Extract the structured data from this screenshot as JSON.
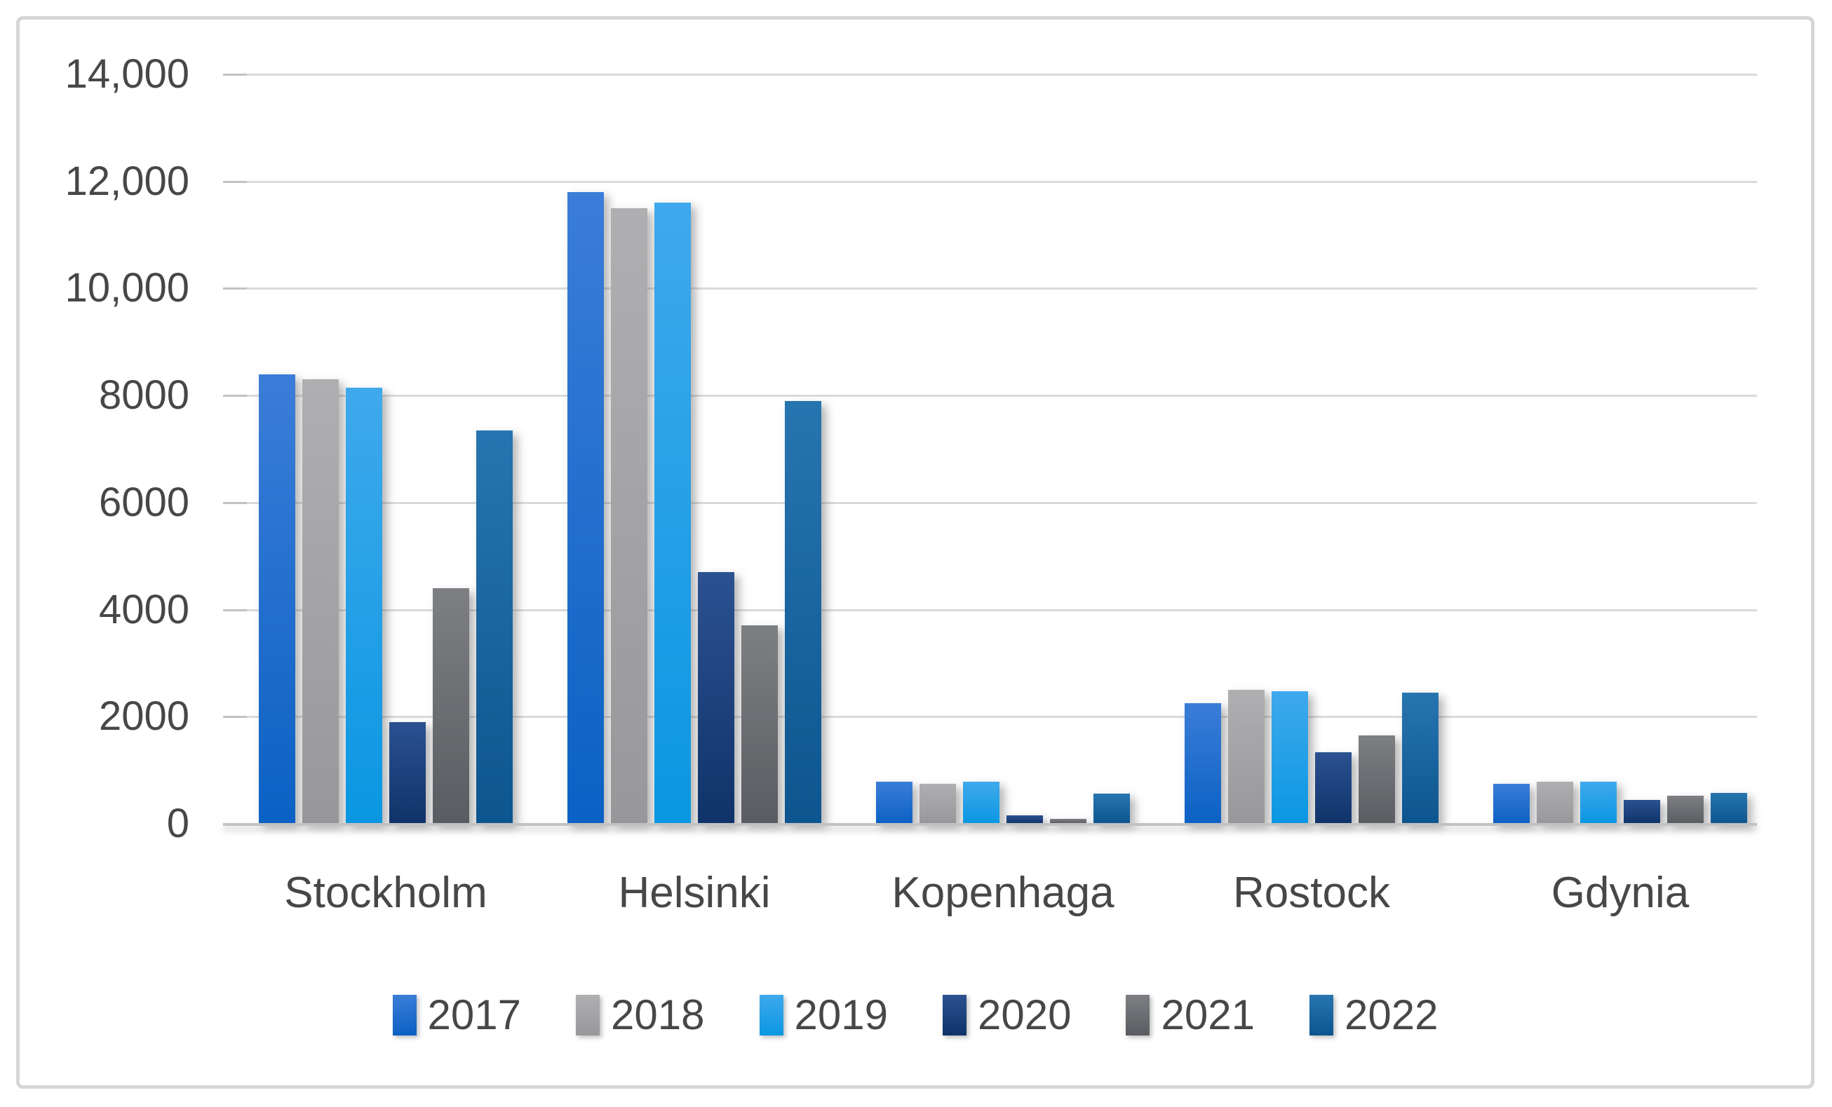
{
  "figure": {
    "background_color": "#FFFFFF",
    "frame_border_color": "#D6D6D8"
  },
  "chart_data": {
    "type": "bar",
    "title": "",
    "xlabel": "",
    "ylabel": "",
    "categories": [
      "Stockholm",
      "Helsinki",
      "Kopenhaga",
      "Rostock",
      "Gdynia"
    ],
    "series": [
      {
        "name": "2017",
        "values": [
          8400,
          11800,
          780,
          2250,
          750
        ],
        "color_top": "#3B7DD8",
        "color_bottom": "#0B61C4"
      },
      {
        "name": "2018",
        "values": [
          8300,
          11500,
          740,
          2500,
          780
        ],
        "color_top": "#AFAFB1",
        "color_bottom": "#98989B"
      },
      {
        "name": "2019",
        "values": [
          8150,
          11600,
          790,
          2480,
          790
        ],
        "color_top": "#3FA9EC",
        "color_bottom": "#0A97E2"
      },
      {
        "name": "2020",
        "values": [
          1900,
          4700,
          160,
          1340,
          440
        ],
        "color_top": "#2C5191",
        "color_bottom": "#0F3369"
      },
      {
        "name": "2021",
        "values": [
          4400,
          3700,
          90,
          1650,
          530
        ],
        "color_top": "#7D7F83",
        "color_bottom": "#595C60"
      },
      {
        "name": "2022",
        "values": [
          7350,
          7900,
          560,
          2450,
          580
        ],
        "color_top": "#2775B0",
        "color_bottom": "#0D558F"
      }
    ],
    "ylim": [
      0,
      14000
    ],
    "ytick_interval": 2000,
    "yticks": [
      0,
      2000,
      4000,
      6000,
      8000,
      10000,
      12000,
      14000
    ],
    "ytick_labels": [
      "0",
      "2000",
      "4000",
      "6000",
      "8000",
      "10,000",
      "12,000",
      "14,000"
    ],
    "grid": true,
    "gridline_color": "#DADADC",
    "axis_line_color": "#C2C2C4",
    "text_color": "#474747",
    "legend_position": "bottom",
    "legend_entries": [
      "2017",
      "2018",
      "2019",
      "2020",
      "2021",
      "2022"
    ]
  }
}
